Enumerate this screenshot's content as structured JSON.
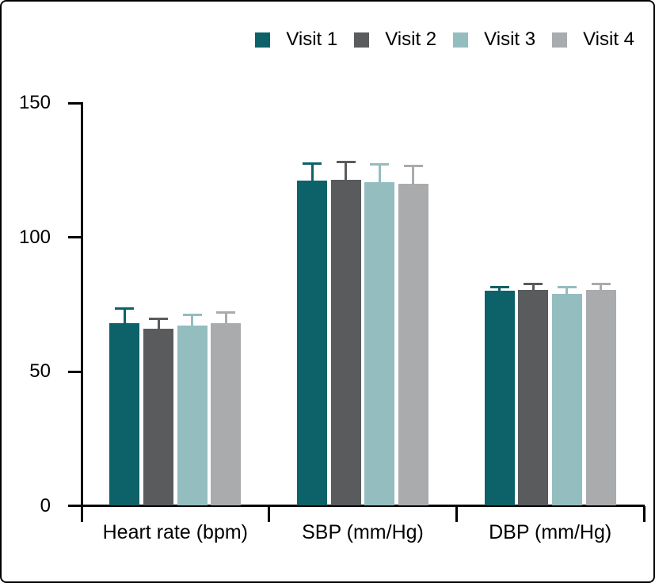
{
  "chart_data": {
    "type": "bar",
    "title": "",
    "categories": [
      "Heart rate (bpm)",
      "SBP (mm/Hg)",
      "DBP (mm/Hg)"
    ],
    "series": [
      {
        "name": "Visit 1",
        "color": "#0d6169",
        "values": [
          68,
          121,
          80
        ],
        "errors": [
          6,
          7,
          2
        ]
      },
      {
        "name": "Visit 2",
        "color": "#595b5d",
        "values": [
          66,
          121.5,
          80.5
        ],
        "errors": [
          4,
          7,
          2.5
        ]
      },
      {
        "name": "Visit 3",
        "color": "#94bdc0",
        "values": [
          67,
          120.5,
          79
        ],
        "errors": [
          4.5,
          7,
          3
        ]
      },
      {
        "name": "Visit 4",
        "color": "#a9abad",
        "values": [
          68,
          120,
          80.5
        ],
        "errors": [
          4.5,
          7,
          2.5
        ]
      }
    ],
    "ylim": [
      0,
      150
    ],
    "yticks": [
      0,
      50,
      100,
      150
    ],
    "ylabel": "",
    "xlabel": "",
    "grid": false,
    "legend_position": "top-right",
    "error_bars": "upper",
    "axis_color": "#000000",
    "text_color": "#000000"
  }
}
